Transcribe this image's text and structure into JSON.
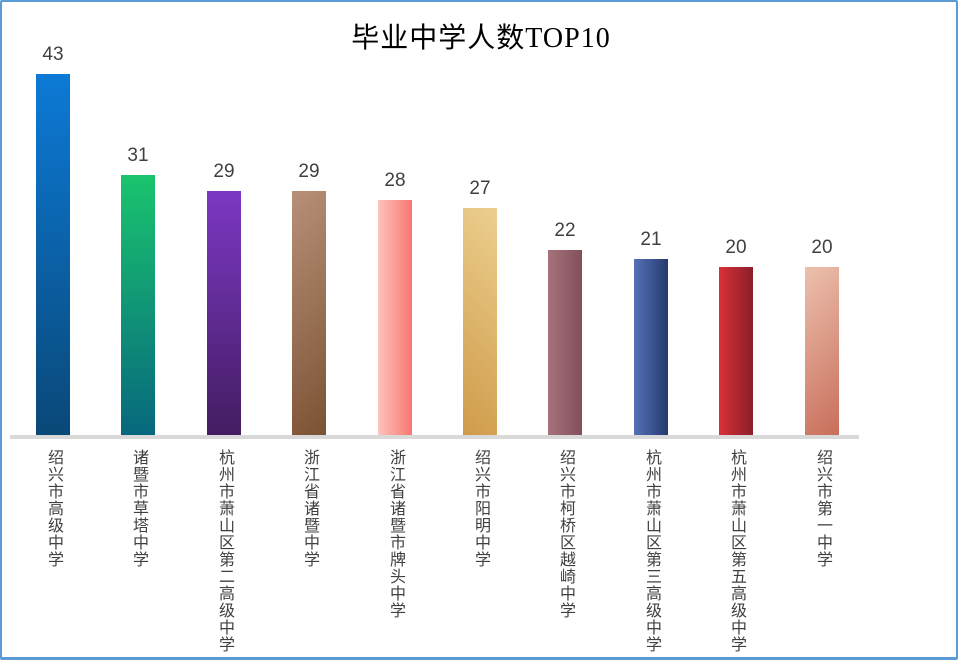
{
  "frame": {
    "border_color": "#5b9bd5",
    "background_color": "#ffffff",
    "axis_line_color": "#d9d9d9",
    "value_label_color": "#404040",
    "category_label_color": "#404040",
    "title_color": "#000000"
  },
  "chart_data": {
    "type": "bar",
    "title": "毕业中学人数TOP10",
    "xlabel": "",
    "ylabel": "",
    "ylim": [
      0,
      45
    ],
    "grid": false,
    "legend": "none",
    "value_labels_shown": true,
    "categories": [
      "绍兴市高级中学",
      "诸暨市草塔中学",
      "杭州市萧山区第二高级中学",
      "浙江省诸暨中学",
      "浙江省诸暨市牌头中学",
      "绍兴市阳明中学",
      "绍兴市柯桥区越崎中学",
      "杭州市萧山区第三高级中学",
      "杭州市萧山区第五高级中学",
      "绍兴市第一中学"
    ],
    "values": [
      43,
      31,
      29,
      29,
      28,
      27,
      22,
      21,
      20,
      20
    ],
    "bar_gradients": [
      {
        "dir": "to bottom",
        "from": "#0c7ad6",
        "to": "#0a4878"
      },
      {
        "dir": "to bottom",
        "from": "#1ac46e",
        "to": "#07687d"
      },
      {
        "dir": "to bottom",
        "from": "#7c38c4",
        "to": "#431d62"
      },
      {
        "dir": "135deg",
        "from": "#b79078",
        "to": "#7c5234"
      },
      {
        "dir": "to right",
        "from": "#ffc3bd",
        "to": "#f87770"
      },
      {
        "dir": "45deg",
        "from": "#cf9b4a",
        "to": "#eccf8f"
      },
      {
        "dir": "to right",
        "from": "#a6727d",
        "to": "#82505b"
      },
      {
        "dir": "to right",
        "from": "#5671b5",
        "to": "#243a70"
      },
      {
        "dir": "to right",
        "from": "#d93036",
        "to": "#8a1f2a"
      },
      {
        "dir": "135deg",
        "from": "#ecc0ae",
        "to": "#c86e5a"
      }
    ]
  }
}
